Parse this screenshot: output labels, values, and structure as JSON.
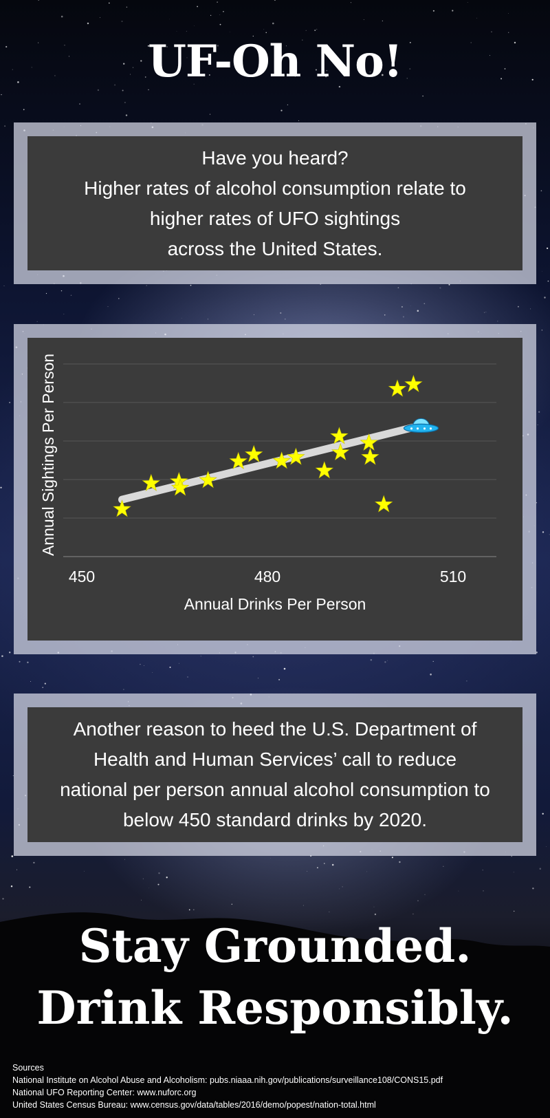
{
  "header": {
    "title": "UF-Oh No!"
  },
  "intro": {
    "lines": [
      "Have you heard?",
      "Higher rates of alcohol consumption relate to",
      "higher rates of UFO sightings",
      "across the United States."
    ]
  },
  "chart_data": {
    "type": "scatter",
    "title": "",
    "xlabel": "Annual Drinks Per Person",
    "ylabel": "Annual Sightings Per Person",
    "x_ticks": [
      "450",
      "480",
      "510"
    ],
    "xlim": [
      447,
      517
    ],
    "ylim": [
      0,
      5
    ],
    "y_gridlines": 5,
    "y_tick_labels_shown": false,
    "marker": "star",
    "marker_color": "#ffff00",
    "trendline_color": "#d9d9d9",
    "trendline_end_icon": "ufo-icon",
    "points": [
      {
        "x": 456.5,
        "y": 1.23
      },
      {
        "x": 461.2,
        "y": 1.9
      },
      {
        "x": 465.7,
        "y": 1.95
      },
      {
        "x": 465.9,
        "y": 1.78
      },
      {
        "x": 470.4,
        "y": 1.98
      },
      {
        "x": 475.3,
        "y": 2.47
      },
      {
        "x": 477.8,
        "y": 2.65
      },
      {
        "x": 482.3,
        "y": 2.48
      },
      {
        "x": 484.6,
        "y": 2.58
      },
      {
        "x": 489.2,
        "y": 2.23
      },
      {
        "x": 491.6,
        "y": 3.12
      },
      {
        "x": 491.8,
        "y": 2.7
      },
      {
        "x": 496.4,
        "y": 2.95
      },
      {
        "x": 496.6,
        "y": 2.58
      },
      {
        "x": 498.8,
        "y": 1.35
      },
      {
        "x": 501.0,
        "y": 4.35
      },
      {
        "x": 503.6,
        "y": 4.47
      }
    ],
    "trendline": {
      "x": [
        456.5,
        503.5
      ],
      "y": [
        1.48,
        3.35
      ]
    }
  },
  "message": {
    "lines": [
      "Another reason to heed the U.S. Department of",
      "Health and Human Services’ call to reduce",
      "national per person annual alcohol consumption to",
      "below 450 standard drinks by 2020."
    ]
  },
  "tagline": {
    "line1": "Stay Grounded.",
    "line2": "Drink Responsibly."
  },
  "sources": {
    "heading": "Sources",
    "items": [
      "National Institute on Alcohol Abuse and Alcoholism: pubs.niaaa.nih.gov/publications/surveillance108/CONS15.pdf",
      "National UFO Reporting Center: www.nuforc.org",
      "United States Census Bureau: www.census.gov/data/tables/2016/demo/popest/nation-total.html"
    ]
  }
}
